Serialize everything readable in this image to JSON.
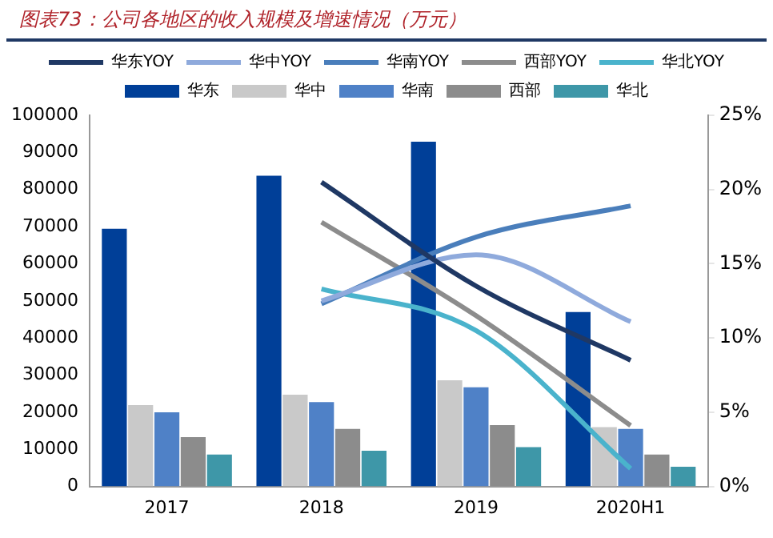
{
  "chart_data": {
    "type": "bar",
    "title": "图表73：公司各地区的收入规模及增速情况（万元）",
    "categories": [
      "2017",
      "2018",
      "2019",
      "2020H1"
    ],
    "series": [
      {
        "name": "华东",
        "color": "#003f98",
        "values": [
          69400,
          83700,
          92900,
          47000
        ]
      },
      {
        "name": "华中",
        "color": "#c9c9c9",
        "values": [
          21900,
          24700,
          28600,
          16000
        ]
      },
      {
        "name": "华南",
        "color": "#4f81c7",
        "values": [
          20000,
          22700,
          26700,
          15500
        ]
      },
      {
        "name": "西部",
        "color": "#8c8c8c",
        "values": [
          13300,
          15500,
          16500,
          8600
        ]
      },
      {
        "name": "华北",
        "color": "#3e97a8",
        "values": [
          8600,
          9600,
          10600,
          5300
        ]
      },
      {
        "name": "华东YOY",
        "type": "line",
        "axis": "y2",
        "color": "#1f3864",
        "values": [
          null,
          20.5,
          13.5,
          8.5
        ]
      },
      {
        "name": "华中YOY",
        "type": "line",
        "axis": "y2",
        "color": "#8faadc",
        "values": [
          null,
          12.5,
          15.6,
          11.1
        ]
      },
      {
        "name": "华南YOY",
        "type": "line",
        "axis": "y2",
        "color": "#4a7ebb",
        "values": [
          null,
          12.3,
          16.8,
          18.9
        ]
      },
      {
        "name": "西部YOY",
        "type": "line",
        "axis": "y2",
        "color": "#8c8c8c",
        "values": [
          null,
          17.8,
          11.5,
          4.1
        ]
      },
      {
        "name": "华北YOY",
        "type": "line",
        "axis": "y2",
        "color": "#4ab3cc",
        "values": [
          null,
          13.3,
          10.5,
          1.2
        ]
      }
    ],
    "ylim": [
      0,
      100000
    ],
    "yticks": [
      0,
      10000,
      20000,
      30000,
      40000,
      50000,
      60000,
      70000,
      80000,
      90000,
      100000
    ],
    "y2lim": [
      0,
      25
    ],
    "y2ticks": [
      {
        "value": 0,
        "label": "0%"
      },
      {
        "value": 5,
        "label": "5%"
      },
      {
        "value": 10,
        "label": "10%"
      },
      {
        "value": 15,
        "label": "15%"
      },
      {
        "value": 20,
        "label": "20%"
      },
      {
        "value": 25,
        "label": "25%"
      }
    ],
    "grid": false,
    "legend": "top",
    "marker": "none",
    "line_style": "solid"
  }
}
